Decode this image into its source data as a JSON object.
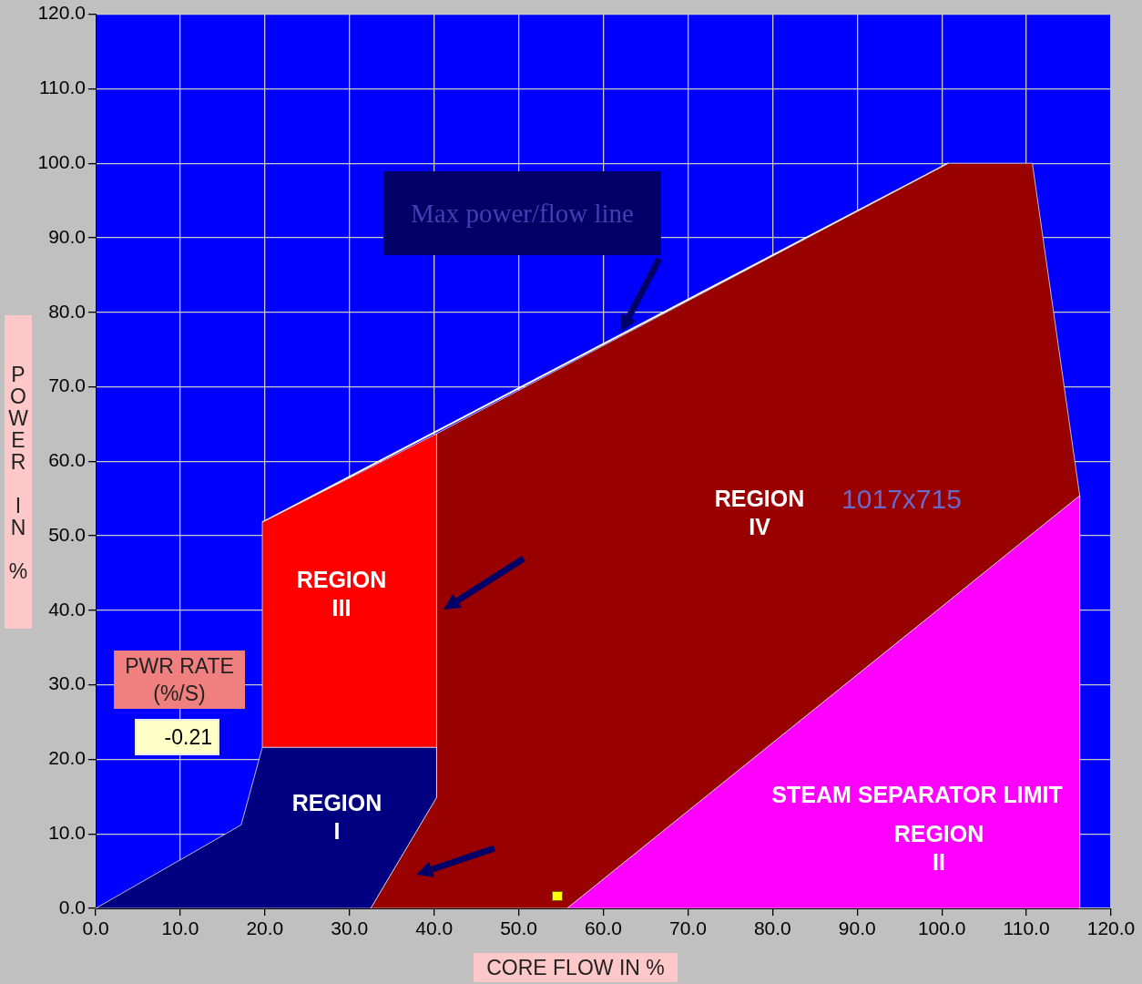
{
  "chart_data": {
    "type": "area",
    "xlabel": "CORE FLOW IN %",
    "ylabel": "POWER IN %",
    "xlim": [
      0,
      120
    ],
    "ylim": [
      0,
      120
    ],
    "xticks": [
      {
        "value": 0,
        "label": "0.0"
      },
      {
        "value": 10,
        "label": "10.0"
      },
      {
        "value": 20,
        "label": "20.0"
      },
      {
        "value": 30,
        "label": "30.0"
      },
      {
        "value": 40,
        "label": "40.0"
      },
      {
        "value": 50,
        "label": "50.0"
      },
      {
        "value": 60,
        "label": "60.0"
      },
      {
        "value": 70,
        "label": "70.0"
      },
      {
        "value": 80,
        "label": "80.0"
      },
      {
        "value": 90,
        "label": "90.0"
      },
      {
        "value": 100,
        "label": "100.0"
      },
      {
        "value": 110,
        "label": "110.0"
      },
      {
        "value": 120,
        "label": "120.0"
      }
    ],
    "yticks": [
      {
        "value": 0,
        "label": "0.0"
      },
      {
        "value": 10,
        "label": "10.0"
      },
      {
        "value": 20,
        "label": "20.0"
      },
      {
        "value": 30,
        "label": "30.0"
      },
      {
        "value": 40,
        "label": "40.0"
      },
      {
        "value": 50,
        "label": "50.0"
      },
      {
        "value": 60,
        "label": "60.0"
      },
      {
        "value": 70,
        "label": "70.0"
      },
      {
        "value": 80,
        "label": "80.0"
      },
      {
        "value": 90,
        "label": "90.0"
      },
      {
        "value": 100,
        "label": "100.0"
      },
      {
        "value": 110,
        "label": "110.0"
      },
      {
        "value": 120,
        "label": "120.0"
      }
    ],
    "grid": true,
    "series": [
      {
        "color": "#000080",
        "x": [
          0,
          17.2,
          19.7,
          40.3,
          40.3,
          32.5,
          0
        ],
        "values": [
          0,
          11.2,
          21.6,
          21.6,
          14.9,
          0,
          0
        ]
      },
      {
        "color": "#ff0000",
        "x": [
          19.7,
          19.7,
          40.3,
          40.3,
          19.7
        ],
        "values": [
          21.6,
          51.8,
          63.7,
          21.6,
          21.6
        ]
      },
      {
        "color": "#990000",
        "x": [
          40.3,
          100.8,
          110.7,
          116.3,
          55.7,
          32.5,
          40.3,
          40.3
        ],
        "values": [
          63.7,
          100,
          100,
          55.4,
          0,
          0,
          14.9,
          63.7
        ]
      },
      {
        "color": "#ff00ff",
        "x": [
          55.7,
          116.3,
          116.3,
          55.7
        ],
        "values": [
          0,
          55.4,
          0,
          0
        ]
      },
      {
        "type": "line",
        "color": "#ffffff",
        "x": [
          19.7,
          100.8
        ],
        "values": [
          51.8,
          100
        ]
      }
    ],
    "annotations": [
      "Max power/flow line",
      "REGION\nI",
      "REGION\nIII",
      "REGION\nIV",
      "STEAM SEPARATOR LIMIT",
      "REGION\nII",
      "1017x715",
      "PWR RATE\n(%/S)",
      "-0.21"
    ]
  }
}
